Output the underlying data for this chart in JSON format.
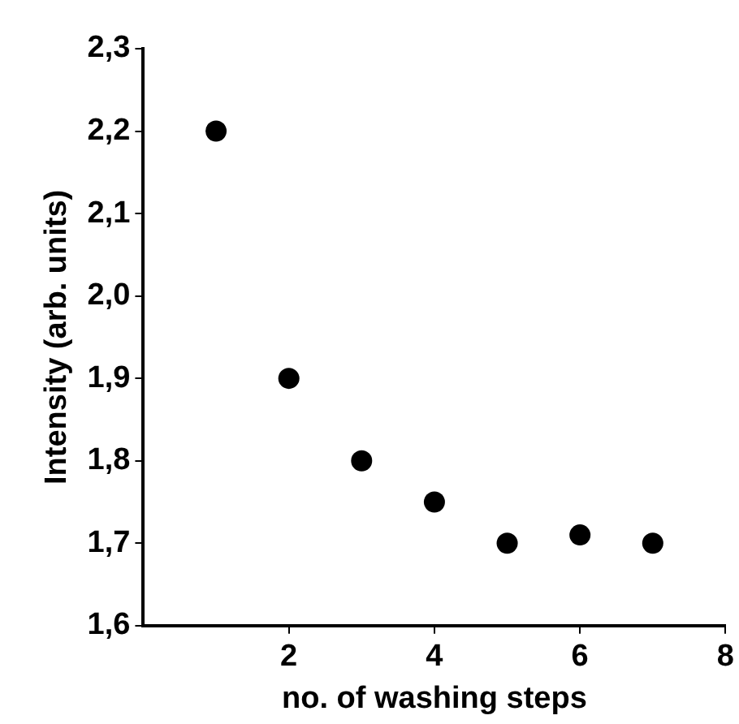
{
  "chart_data": {
    "type": "scatter",
    "xlabel": "no. of washing steps",
    "ylabel": "Intensity (arb. units)",
    "x": [
      1,
      2,
      3,
      4,
      5,
      6,
      7
    ],
    "series": [
      {
        "color": "#000000",
        "values": [
          2.2,
          1.9,
          1.8,
          1.75,
          1.7,
          1.71,
          1.7
        ]
      }
    ],
    "xlim": [
      0,
      8
    ],
    "xticks": [
      2,
      4,
      6,
      8
    ],
    "ylim": [
      1.6,
      2.3
    ],
    "yticks": [
      {
        "value": 1.6,
        "label": "1,6"
      },
      {
        "value": 1.7,
        "label": "1,7"
      },
      {
        "value": 1.8,
        "label": "1,8"
      },
      {
        "value": 1.9,
        "label": "1,9"
      },
      {
        "value": 2.0,
        "label": "2,0"
      },
      {
        "value": 2.1,
        "label": "2,1"
      },
      {
        "value": 2.2,
        "label": "2,2"
      },
      {
        "value": 2.3,
        "label": "2,3"
      }
    ],
    "grid": false,
    "legend": false,
    "marker": "circle"
  }
}
